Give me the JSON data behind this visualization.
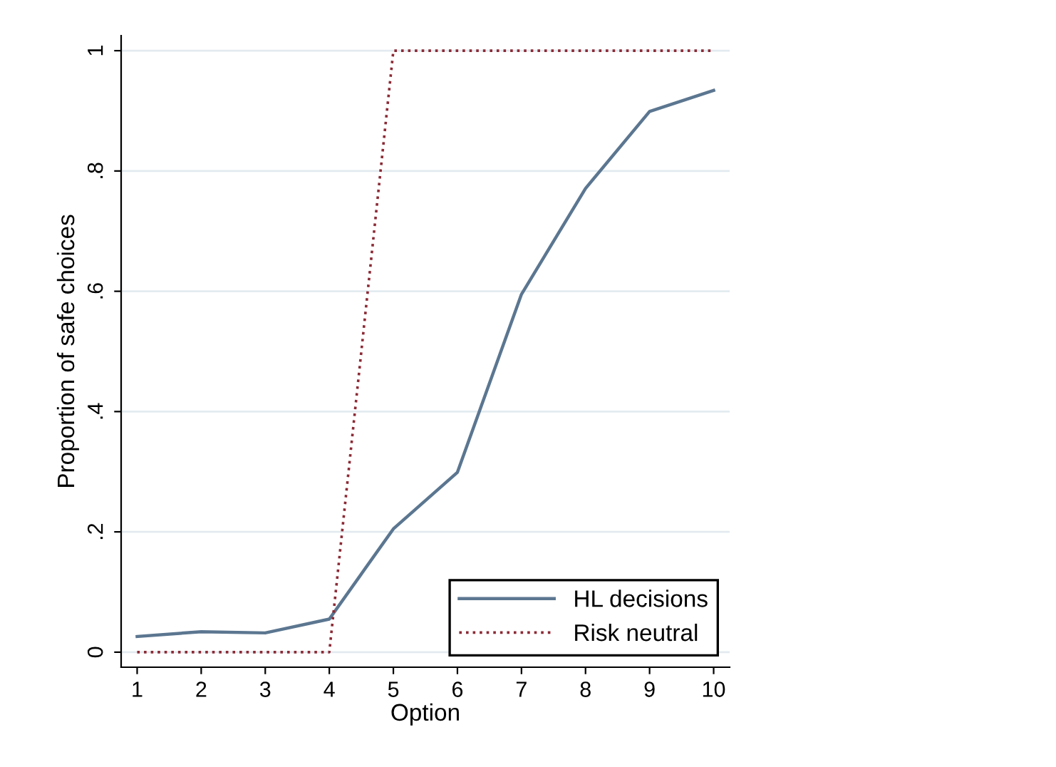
{
  "chart_data": {
    "type": "line",
    "xlabel": "Option",
    "ylabel": "Proportion of safe choices",
    "x": [
      1,
      2,
      3,
      4,
      5,
      6,
      7,
      8,
      9,
      10
    ],
    "xlim": [
      0.75,
      10.25
    ],
    "xticks": [
      1,
      2,
      3,
      4,
      5,
      6,
      7,
      8,
      9,
      10
    ],
    "ylim": [
      -0.025,
      1.025
    ],
    "yticks": [
      {
        "value": 0,
        "label": "0"
      },
      {
        "value": 0.2,
        "label": ".2"
      },
      {
        "value": 0.4,
        "label": ".4"
      },
      {
        "value": 0.6,
        "label": ".6"
      },
      {
        "value": 0.8,
        "label": ".8"
      },
      {
        "value": 1,
        "label": "1"
      }
    ],
    "grid": "y",
    "legend": "bottom right",
    "series": [
      {
        "name": "HL decisions",
        "color": "#5b7690",
        "line_style": "solid",
        "values": [
          0.026,
          0.034,
          0.032,
          0.055,
          0.205,
          0.299,
          0.595,
          0.771,
          0.899,
          0.934
        ]
      },
      {
        "name": "Risk neutral",
        "color": "#8b2a35",
        "line_style": "dotted",
        "values": [
          0,
          0,
          0,
          0,
          1,
          1,
          1,
          1,
          1,
          1
        ]
      }
    ]
  }
}
